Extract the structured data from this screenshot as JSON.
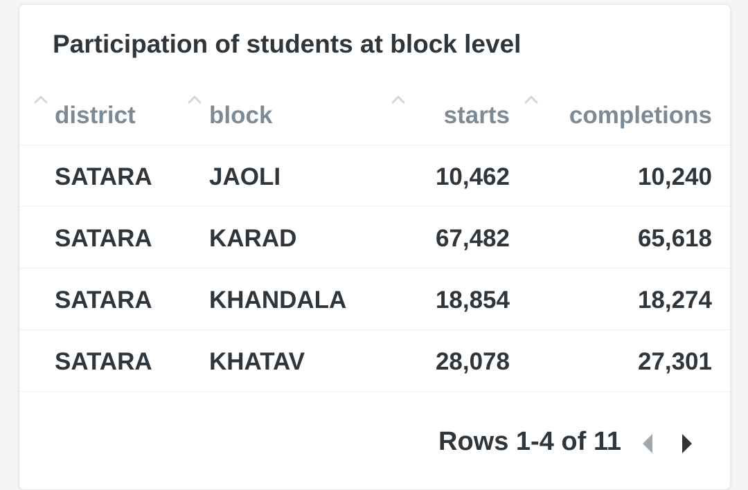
{
  "card": {
    "title": "Participation of students at block level"
  },
  "table": {
    "columns": [
      {
        "key": "district",
        "label": "district"
      },
      {
        "key": "block",
        "label": "block"
      },
      {
        "key": "starts",
        "label": "starts"
      },
      {
        "key": "completions",
        "label": "completions"
      }
    ],
    "rows": [
      {
        "district": "SATARA",
        "block": "JAOLI",
        "starts": "10,462",
        "completions": "10,240"
      },
      {
        "district": "SATARA",
        "block": "KARAD",
        "starts": "67,482",
        "completions": "65,618"
      },
      {
        "district": "SATARA",
        "block": "KHANDALA",
        "starts": "18,854",
        "completions": "18,274"
      },
      {
        "district": "SATARA",
        "block": "KHATAV",
        "starts": "28,078",
        "completions": "27,301"
      }
    ]
  },
  "pagination": {
    "label": "Rows 1-4 of 11",
    "prev_icon": "chevron-left-icon",
    "next_icon": "chevron-right-icon"
  },
  "colors": {
    "text_dark": "#2e353b",
    "header_text": "#7c8a95",
    "sort_icon": "#d3d8dc",
    "nav_disabled": "#a0a8ae",
    "nav_enabled": "#2e353b"
  }
}
